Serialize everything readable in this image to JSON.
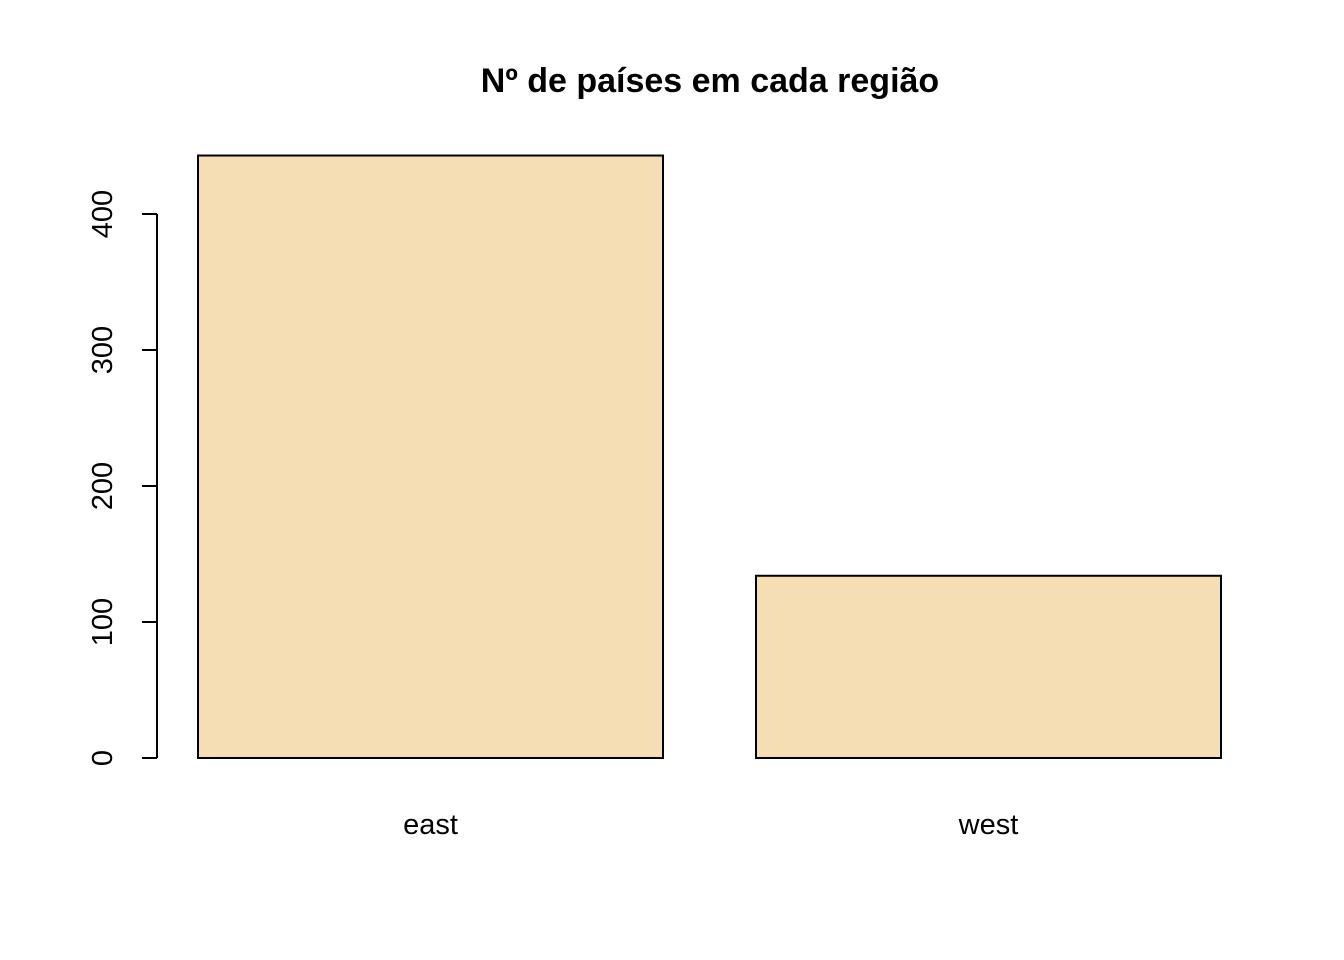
{
  "chart_data": {
    "type": "bar",
    "title": "Nº de países em cada região",
    "xlabel": "",
    "ylabel": "",
    "categories": [
      "east",
      "west"
    ],
    "values": [
      443,
      134
    ],
    "yticks": [
      0,
      100,
      200,
      300,
      400
    ],
    "ylim": [
      0,
      443
    ],
    "grid": false,
    "bar_color": "#F5DEB3",
    "border_color": "#000000"
  }
}
